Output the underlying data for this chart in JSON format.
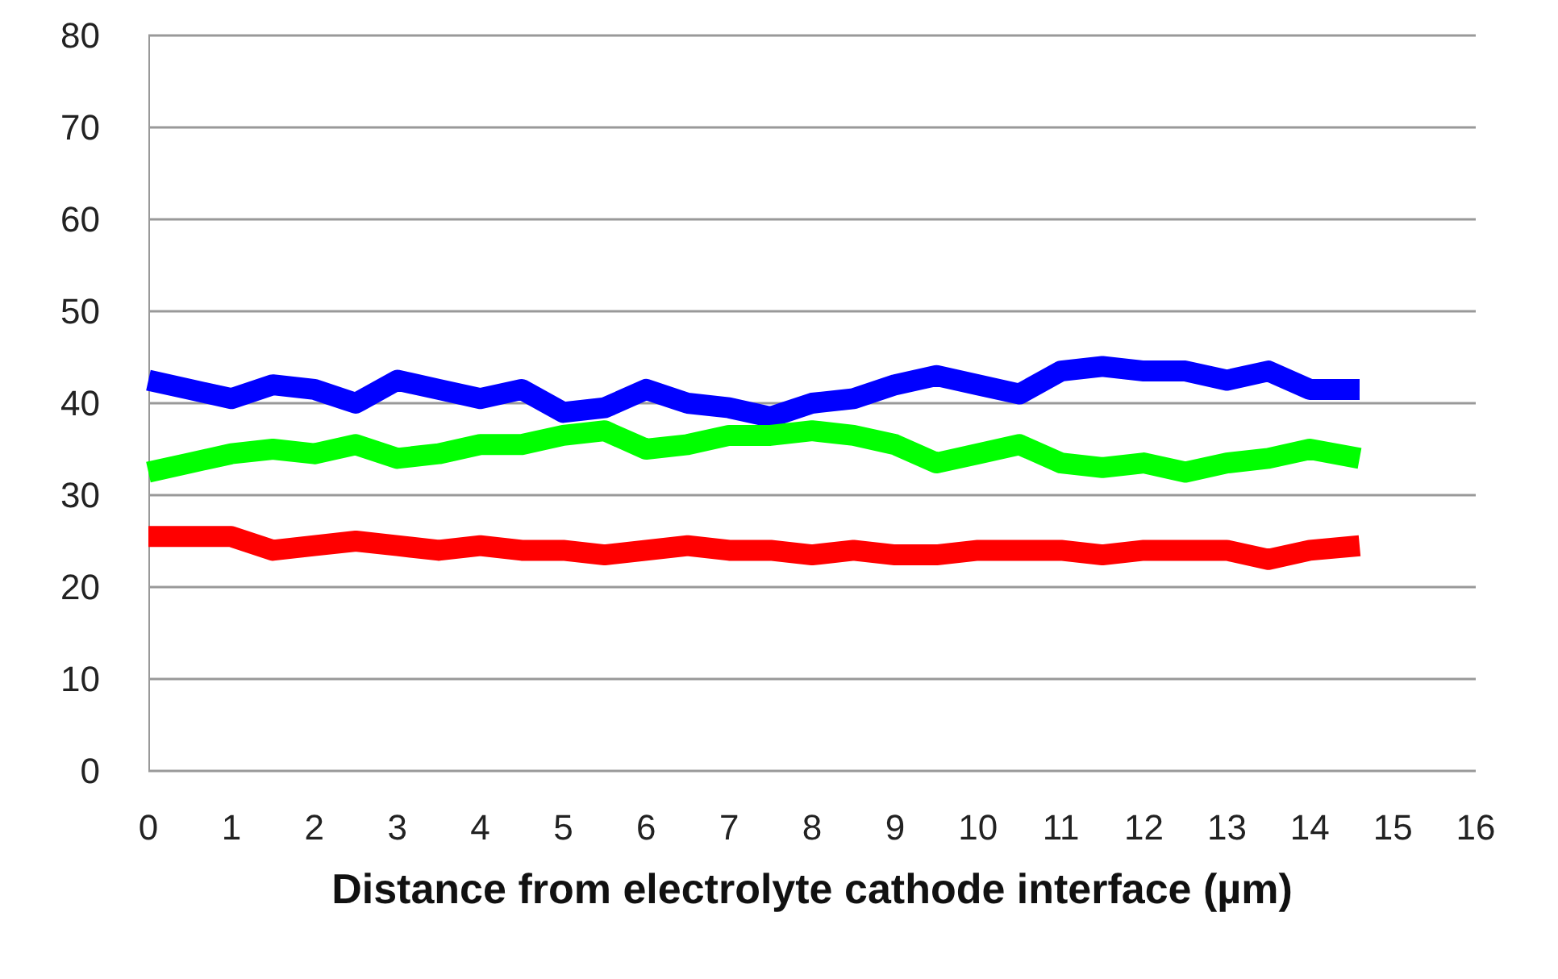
{
  "chart_data": {
    "type": "line",
    "xlabel": "Distance from electrolyte cathode interface (µm)",
    "x": [
      0,
      0.5,
      1,
      1.5,
      2,
      2.5,
      3,
      3.5,
      4,
      4.5,
      5,
      5.5,
      6,
      6.5,
      7,
      7.5,
      8,
      8.5,
      9,
      9.5,
      10,
      10.5,
      11,
      11.5,
      12,
      12.5,
      13,
      13.5,
      14,
      14.6
    ],
    "series": [
      {
        "color": "#0000ff",
        "values": [
          42.5,
          41.5,
          40.5,
          42,
          41.5,
          40,
          42.5,
          41.5,
          40.5,
          41.5,
          39,
          39.5,
          41.5,
          40,
          39.5,
          38.5,
          40,
          40.5,
          42,
          43,
          42,
          41,
          43.5,
          44,
          43.5,
          43.5,
          42.5,
          43.5,
          41.5,
          41.5
        ]
      },
      {
        "color": "#00ff00",
        "values": [
          32.5,
          33.5,
          34.5,
          35,
          34.5,
          35.5,
          34,
          34.5,
          35.5,
          35.5,
          36.5,
          37,
          35,
          35.5,
          36.5,
          36.5,
          37,
          36.5,
          35.5,
          33.5,
          34.5,
          35.5,
          33.5,
          33,
          33.5,
          32.5,
          33.5,
          34,
          35,
          34
        ]
      },
      {
        "color": "#ff0000",
        "values": [
          25.5,
          25.5,
          25.5,
          24,
          24.5,
          25,
          24.5,
          24,
          24.5,
          24,
          24,
          23.5,
          24,
          24.5,
          24,
          24,
          23.5,
          24,
          23.5,
          23.5,
          24,
          24,
          24,
          23.5,
          24,
          24,
          24,
          23,
          24,
          24.5
        ]
      }
    ],
    "xlim": [
      0,
      16
    ],
    "xticks": [
      0,
      1,
      2,
      3,
      4,
      5,
      6,
      7,
      8,
      9,
      10,
      11,
      12,
      13,
      14,
      15,
      16
    ],
    "ylim": [
      0,
      80
    ],
    "yticks": [
      0,
      10,
      20,
      30,
      40,
      50,
      60,
      70,
      80
    ],
    "grid": "y",
    "marker": "none",
    "line_style": "solid"
  }
}
